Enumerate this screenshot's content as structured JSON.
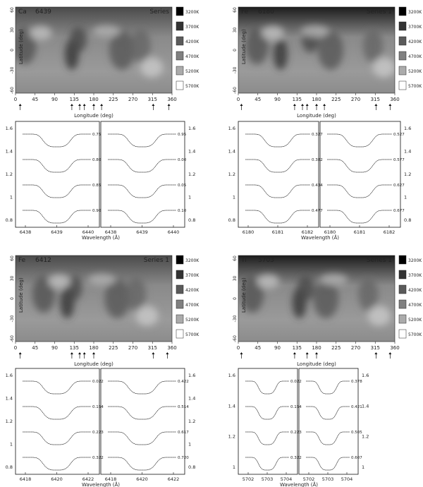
{
  "panels": [
    {
      "id": "a",
      "element": "Ca",
      "line": "6439",
      "series": "Series",
      "legend": [
        "3200K",
        "3700K",
        "4200K",
        "4700K",
        "5200K",
        "5700K"
      ],
      "lat_ticks": [
        "60",
        "30",
        "0",
        "-30",
        "-60"
      ],
      "lon_ticks": [
        "0",
        "45",
        "90",
        "135",
        "180",
        "225",
        "270",
        "315",
        "360"
      ],
      "lon_label": "Longitude (deg)",
      "lat_label": "Latitude (deg)",
      "phase_arrows": [
        0.03,
        0.36,
        0.41,
        0.44,
        0.5,
        0.55,
        0.88,
        0.98
      ],
      "profiles": {
        "left_ticks": [
          "1.6",
          "1.4",
          "1.2",
          "1",
          "0.8"
        ],
        "right_ticks": [
          "1.6",
          "1.4",
          "1.2",
          "1",
          "0.8"
        ],
        "x_ticks_left": [
          "6438",
          "6439",
          "6440"
        ],
        "x_ticks_right": [
          "6438",
          "6439",
          "6440"
        ],
        "wavelength_label": "Wavelength (Å)",
        "phase_labels_left": [
          "0.75",
          "0.80",
          "0.85",
          "0.90"
        ],
        "phase_labels_right": [
          "0.95",
          "0.00",
          "0.05",
          "0.10"
        ]
      }
    },
    {
      "id": "b",
      "element": "Fe",
      "line": "6180",
      "series": "Series 1",
      "legend": [
        "3200K",
        "3700K",
        "4200K",
        "4700K",
        "5200K",
        "5700K"
      ],
      "lat_ticks": [
        "60",
        "30",
        "0",
        "-30",
        "-60"
      ],
      "lon_ticks": [
        "0",
        "45",
        "90",
        "135",
        "180",
        "225",
        "270",
        "315",
        "360"
      ],
      "lon_label": "Longitude (deg)",
      "lat_label": "Latitude (deg)",
      "phase_arrows": [
        0.02,
        0.36,
        0.41,
        0.44,
        0.5,
        0.55,
        0.88,
        0.97
      ],
      "profiles": {
        "left_ticks": [
          "1.6",
          "1.4",
          "1.2",
          "1",
          "0.8"
        ],
        "right_ticks": [
          "1.6",
          "1.4",
          "1.2",
          "1",
          "0.8"
        ],
        "x_ticks_left": [
          "6180",
          "6181",
          "6182"
        ],
        "x_ticks_right": [
          "6180",
          "6181",
          "6182"
        ],
        "wavelength_label": "Wavelength (Å)",
        "phase_labels_left": [
          "0.327",
          "0.382",
          "0.434",
          "0.477"
        ],
        "phase_labels_right": [
          "0.527",
          "0.577",
          "0.627",
          "0.677"
        ]
      }
    },
    {
      "id": "c",
      "element": "Fe",
      "line": "6412",
      "series": "Series 1",
      "legend": [
        "3200K",
        "3700K",
        "4200K",
        "4700K",
        "5200K",
        "5700K"
      ],
      "lat_ticks": [
        "60",
        "30",
        "0",
        "-30",
        "-60"
      ],
      "lon_ticks": [
        "0",
        "45",
        "90",
        "135",
        "180",
        "225",
        "270",
        "315",
        "360"
      ],
      "lon_label": "Longitude (deg)",
      "lat_label": "Latitude (deg)",
      "phase_arrows": [
        0.03,
        0.36,
        0.41,
        0.44,
        0.5,
        0.88,
        0.97
      ],
      "profiles": {
        "left_ticks": [
          "1.6",
          "1.4",
          "1.2",
          "1",
          "0.8"
        ],
        "right_ticks": [
          "1.6",
          "1.4",
          "1.2",
          "1",
          "0.8"
        ],
        "x_ticks_left": [
          "6418",
          "6420",
          "6422"
        ],
        "x_ticks_right": [
          "6418",
          "6420",
          "6422"
        ],
        "wavelength_label": "Wavelength (Å)",
        "phase_labels_left": [
          "0.022",
          "0.154",
          "0.223",
          "0.322"
        ],
        "phase_labels_right": [
          "0.422",
          "0.514",
          "0.617",
          "0.720"
        ]
      }
    },
    {
      "id": "d",
      "element": "Ti",
      "line": "5703",
      "series": "Series 1",
      "legend": [
        "3200K",
        "3700K",
        "4200K",
        "4700K",
        "5200K",
        "5700K"
      ],
      "lat_ticks": [
        "60",
        "30",
        "0",
        "-30",
        "-60"
      ],
      "lon_ticks": [
        "0",
        "45",
        "90",
        "135",
        "180",
        "225",
        "270",
        "315",
        "360"
      ],
      "lon_label": "Longitude (deg)",
      "lat_label": "Latitude (deg)",
      "phase_arrows": [
        0.02,
        0.36,
        0.44,
        0.5,
        0.88,
        0.97
      ],
      "profiles": {
        "left_ticks": [
          "1.6",
          "1.4",
          "1.2",
          "1"
        ],
        "right_ticks": [
          "1.6",
          "1.4",
          "1.2",
          "1"
        ],
        "x_ticks_left": [
          "5702",
          "5703",
          "5704"
        ],
        "x_ticks_right": [
          "5702",
          "5703",
          "5704"
        ],
        "wavelength_label": "Wavelength (Å)",
        "phase_labels_left": [
          "0.022",
          "0.154",
          "0.223",
          "0.322"
        ],
        "phase_labels_right": [
          "0.378",
          "0.421",
          "0.505",
          "0.607"
        ]
      }
    }
  ]
}
